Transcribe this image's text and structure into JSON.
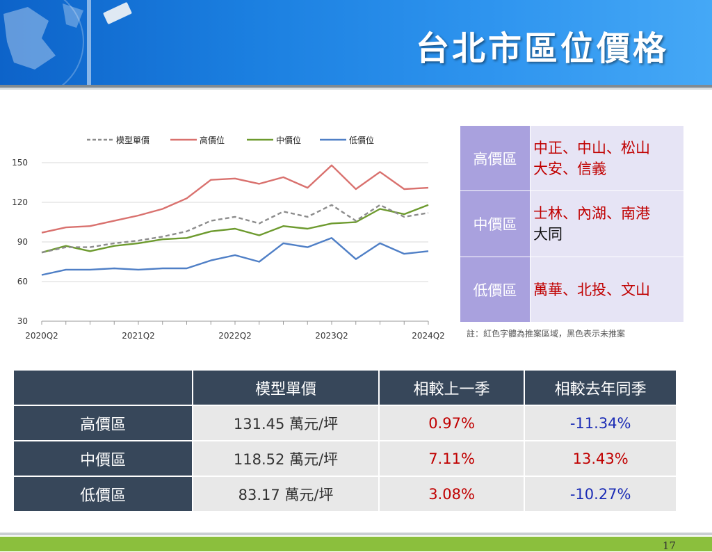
{
  "page": {
    "title": "台北市區位價格",
    "page_number": "17"
  },
  "colors": {
    "header_blue": "#1b7fe0",
    "model": "#8c8c8c",
    "high": "#d9716e",
    "mid": "#6d9a2e",
    "low": "#4f7fc6",
    "table_dark": "#37475a",
    "positive_red": "#c00000",
    "negative_blue": "#1a2bb5",
    "footer_green": "#8bbf3d"
  },
  "chart_data": {
    "type": "line",
    "x": [
      "2020Q2",
      "2020Q3",
      "2020Q4",
      "2021Q1",
      "2021Q2",
      "2021Q3",
      "2021Q4",
      "2022Q1",
      "2022Q2",
      "2022Q3",
      "2022Q4",
      "2023Q1",
      "2023Q2",
      "2023Q3",
      "2023Q4",
      "2024Q1",
      "2024Q2"
    ],
    "tick_labels": [
      "2020Q2",
      "2021Q2",
      "2022Q2",
      "2023Q2",
      "2024Q2"
    ],
    "y_ticks": [
      "30",
      "60",
      "90",
      "120",
      "150"
    ],
    "ylim": [
      30,
      150
    ],
    "grid": true,
    "legend_position": "top",
    "series": [
      {
        "name": "模型單價",
        "style": "dashed",
        "values": [
          82,
          86,
          86,
          89,
          91,
          94,
          98,
          106,
          109,
          104,
          113,
          109,
          118,
          106,
          118,
          109,
          112
        ]
      },
      {
        "name": "高價位",
        "style": "solid",
        "values": [
          97,
          101,
          102,
          106,
          110,
          115,
          123,
          137,
          138,
          134,
          139,
          131,
          148,
          130,
          143,
          130,
          131
        ]
      },
      {
        "name": "中價位",
        "style": "solid",
        "values": [
          82,
          87,
          83,
          87,
          89,
          92,
          93,
          98,
          100,
          95,
          102,
          100,
          104,
          105,
          115,
          111,
          118
        ]
      },
      {
        "name": "低價位",
        "style": "solid",
        "values": [
          65,
          69,
          69,
          70,
          69,
          70,
          70,
          76,
          80,
          75,
          89,
          86,
          93,
          77,
          89,
          81,
          83
        ]
      }
    ]
  },
  "region_table": [
    {
      "label": "高價區",
      "line1": "中正、中山、松山",
      "line2": "大安、信義",
      "line2_black": ""
    },
    {
      "label": "中價區",
      "line1": "士林、內湖、南港",
      "line2": "",
      "line2_black": "大同"
    },
    {
      "label": "低價區",
      "line1": "萬華、北投、文山",
      "line2": "",
      "line2_black": ""
    }
  ],
  "note": "註：紅色字體為推案區域，黑色表示未推案",
  "price_table": {
    "headers": [
      "",
      "模型單價",
      "相較上一季",
      "相較去年同季"
    ],
    "rows": [
      {
        "label": "高價區",
        "price": "131.45 萬元/坪",
        "qoq": "0.97%",
        "yoy": "-11.34%"
      },
      {
        "label": "中價區",
        "price": "118.52 萬元/坪",
        "qoq": "7.11%",
        "yoy": "13.43%"
      },
      {
        "label": "低價區",
        "price": "83.17 萬元/坪",
        "qoq": "3.08%",
        "yoy": "-10.27%"
      }
    ]
  }
}
